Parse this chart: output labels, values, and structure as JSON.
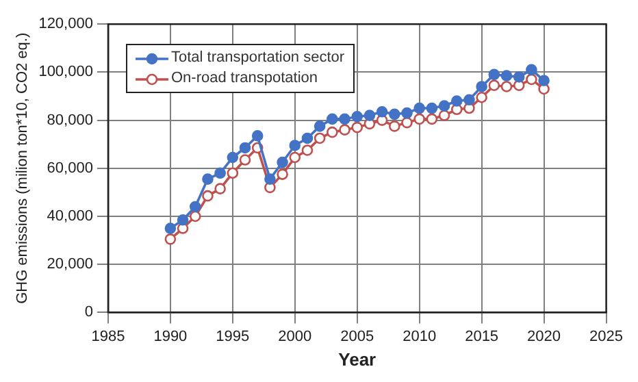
{
  "chart_data": {
    "type": "line",
    "xlabel": "Year",
    "ylabel": "GHG emissions (milion ton*10, CO2 eq.)",
    "x": [
      1990,
      1991,
      1992,
      1993,
      1994,
      1995,
      1996,
      1997,
      1998,
      1999,
      2000,
      2001,
      2002,
      2003,
      2004,
      2005,
      2006,
      2007,
      2008,
      2009,
      2010,
      2011,
      2012,
      2013,
      2014,
      2015,
      2016,
      2017,
      2018,
      2019,
      2020
    ],
    "series": [
      {
        "name": "Total transportation sector",
        "color": "#4472c4",
        "marker": "circle",
        "values": [
          35000,
          38500,
          44000,
          55500,
          58000,
          64500,
          68500,
          73500,
          55500,
          62500,
          69500,
          72500,
          77500,
          80500,
          80500,
          81500,
          82000,
          83500,
          82500,
          83000,
          85000,
          85000,
          86000,
          88000,
          88500,
          94000,
          99000,
          98500,
          98000,
          101000,
          96500
        ]
      },
      {
        "name": "On-road transpotation",
        "color": "#c0504d",
        "marker": "circle",
        "values": [
          30500,
          35000,
          40000,
          48500,
          51500,
          58000,
          63500,
          68500,
          52000,
          57500,
          64500,
          67500,
          72500,
          75000,
          76000,
          77000,
          78500,
          80000,
          77500,
          79000,
          80500,
          80500,
          82000,
          84500,
          85000,
          89500,
          94500,
          94000,
          94500,
          97000,
          93000
        ]
      }
    ],
    "xlim": [
      1985,
      2025
    ],
    "xticks": [
      1985,
      1990,
      1995,
      2000,
      2005,
      2010,
      2015,
      2020,
      2025
    ],
    "ylim": [
      0,
      120000
    ],
    "yticks": [
      {
        "value": 0,
        "label": "0"
      },
      {
        "value": 20000,
        "label": "20,000"
      },
      {
        "value": 40000,
        "label": "40,000"
      },
      {
        "value": 60000,
        "label": "60,000"
      },
      {
        "value": 80000,
        "label": "80,000"
      },
      {
        "value": 100000,
        "label": "100,000"
      },
      {
        "value": 120000,
        "label": "120,000"
      }
    ],
    "grid": true,
    "legend": "top left",
    "line_style": "solid"
  }
}
